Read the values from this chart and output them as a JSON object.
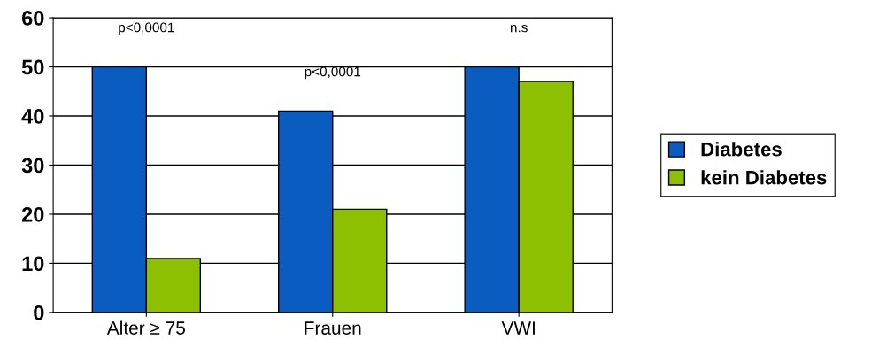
{
  "chart_data": {
    "type": "bar",
    "categories": [
      "Alter ≥ 75",
      "Frauen",
      "VWI"
    ],
    "series": [
      {
        "name": "Diabetes",
        "color": "#0a5cc0",
        "values": [
          50,
          41,
          50
        ]
      },
      {
        "name": "kein Diabetes",
        "color": "#8cc000",
        "values": [
          11,
          21,
          47
        ]
      }
    ],
    "ylim": [
      0,
      60
    ],
    "yticks": [
      0,
      10,
      20,
      30,
      40,
      50,
      60
    ],
    "grid": "y",
    "legend": "right",
    "annotations": [
      "p<0,0001",
      "p<0,0001",
      "n.s"
    ]
  }
}
